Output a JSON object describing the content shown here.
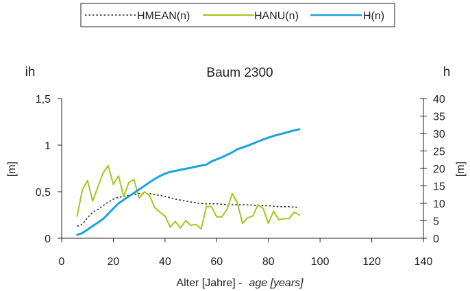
{
  "chart_data": {
    "type": "line",
    "title": "Baum 2300",
    "xlabel_main": "Alter [Jahre] -",
    "xlabel_italic": "age  [years]",
    "y_left_corner": "ih",
    "y_left_label": "[m]",
    "y_right_corner": "h",
    "y_right_label": "[m]",
    "xlim": [
      0,
      140
    ],
    "ylim_left": [
      0,
      1.5
    ],
    "ylim_right": [
      0,
      40
    ],
    "x_ticks": [
      "0",
      "20",
      "40",
      "60",
      "80",
      "100",
      "120",
      "140"
    ],
    "y_left_ticks": [
      "0",
      "0,5",
      "1",
      "1,5"
    ],
    "y_right_ticks": [
      "0",
      "5",
      "10",
      "15",
      "20",
      "25",
      "30",
      "35",
      "40"
    ],
    "grid": false,
    "legend_position": "top-center",
    "series": [
      {
        "name": "HMEAN(n)",
        "axis": "left",
        "color": "#231f20",
        "style": "dotted",
        "x": [
          6,
          8,
          10,
          12,
          14,
          16,
          18,
          20,
          22,
          24,
          26,
          28,
          30,
          32,
          34,
          36,
          40,
          44,
          48,
          52,
          56,
          60,
          64,
          68,
          72,
          76,
          80,
          84,
          88,
          92
        ],
        "y": [
          0.13,
          0.15,
          0.22,
          0.28,
          0.31,
          0.35,
          0.39,
          0.42,
          0.44,
          0.45,
          0.46,
          0.47,
          0.48,
          0.48,
          0.48,
          0.47,
          0.45,
          0.42,
          0.4,
          0.38,
          0.37,
          0.37,
          0.36,
          0.36,
          0.36,
          0.35,
          0.35,
          0.34,
          0.34,
          0.33
        ]
      },
      {
        "name": "HANU(n)",
        "axis": "left",
        "color": "#a3c61c",
        "style": "solid",
        "x": [
          6,
          8,
          10,
          12,
          14,
          16,
          18,
          20,
          22,
          24,
          26,
          28,
          30,
          32,
          34,
          36,
          38,
          40,
          42,
          44,
          46,
          48,
          50,
          52,
          54,
          56,
          58,
          60,
          62,
          64,
          66,
          68,
          70,
          72,
          74,
          76,
          78,
          80,
          82,
          84,
          86,
          88,
          90,
          92
        ],
        "y": [
          0.24,
          0.52,
          0.62,
          0.4,
          0.55,
          0.7,
          0.78,
          0.58,
          0.67,
          0.45,
          0.6,
          0.63,
          0.43,
          0.5,
          0.46,
          0.33,
          0.28,
          0.24,
          0.12,
          0.18,
          0.11,
          0.19,
          0.14,
          0.15,
          0.1,
          0.34,
          0.34,
          0.23,
          0.23,
          0.31,
          0.48,
          0.38,
          0.16,
          0.22,
          0.24,
          0.36,
          0.32,
          0.16,
          0.29,
          0.2,
          0.21,
          0.21,
          0.28,
          0.25
        ]
      },
      {
        "name": "H(n)",
        "axis": "right",
        "color": "#1aa3dd",
        "style": "solid",
        "x": [
          6,
          8,
          10,
          12,
          14,
          16,
          18,
          20,
          22,
          24,
          26,
          28,
          30,
          32,
          34,
          36,
          38,
          40,
          42,
          44,
          46,
          48,
          50,
          52,
          54,
          56,
          58,
          60,
          62,
          64,
          66,
          68,
          70,
          72,
          74,
          76,
          78,
          80,
          82,
          84,
          86,
          88,
          90,
          92
        ],
        "y": [
          1,
          1.5,
          2.5,
          3.5,
          4.5,
          5.5,
          7,
          8.5,
          10,
          11,
          12,
          13,
          14,
          15,
          16,
          17,
          17.8,
          18.5,
          19,
          19.3,
          19.6,
          19.9,
          20.2,
          20.5,
          20.8,
          21.1,
          22,
          22.6,
          23.2,
          23.9,
          24.6,
          25.5,
          26,
          26.5,
          27.1,
          27.7,
          28.3,
          28.8,
          29.3,
          29.7,
          30.1,
          30.5,
          30.9,
          31.2
        ]
      }
    ]
  }
}
